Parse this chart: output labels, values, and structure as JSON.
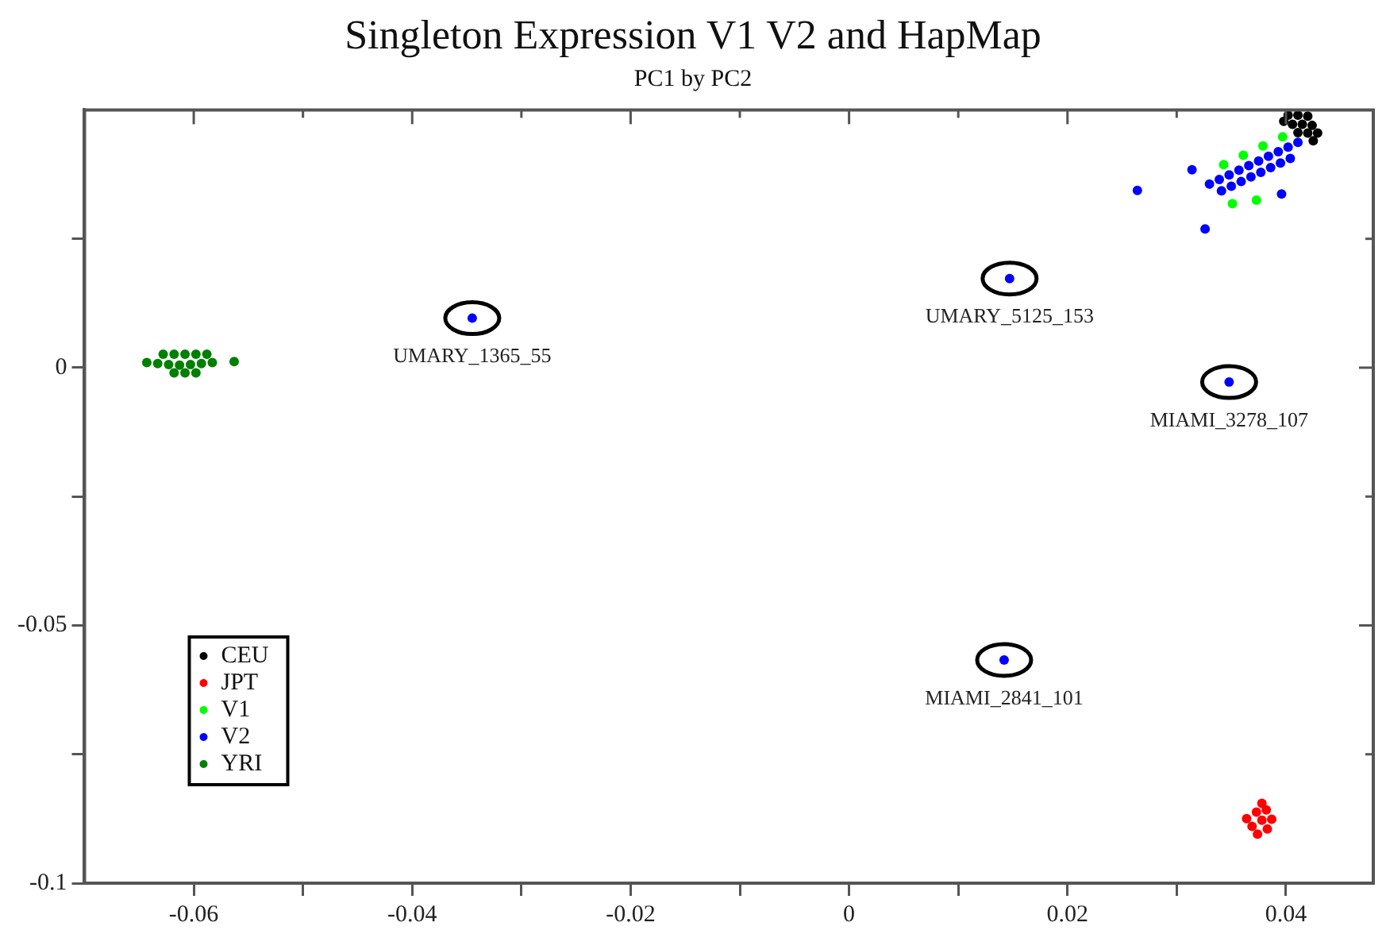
{
  "chart_data": {
    "type": "scatter",
    "title": "Singleton Expression V1 V2 and HapMap",
    "subtitle": "PC1 by PC2",
    "xlim": [
      -0.07,
      0.048
    ],
    "ylim": [
      -0.1,
      0.05
    ],
    "xticks": [
      -0.06,
      {
        "value": -0.05,
        "label": null
      },
      -0.04,
      {
        "value": -0.03,
        "label": null
      },
      -0.02,
      {
        "value": -0.01,
        "label": null
      },
      0,
      {
        "value": 0.01,
        "label": null
      },
      0.02,
      {
        "value": 0.03,
        "label": null
      },
      0.04
    ],
    "yticks": [
      -0.1,
      {
        "value": -0.075,
        "label": null
      },
      -0.05,
      {
        "value": -0.025,
        "label": null
      },
      0,
      {
        "value": 0.025,
        "label": null
      }
    ],
    "grid": false,
    "legend": "bottom left",
    "marker": "circle",
    "series": [
      {
        "name": "CEU",
        "color": "#000000",
        "x": [
          0.0402,
          0.0411,
          0.042,
          0.0398,
          0.0406,
          0.0415,
          0.0424,
          0.0411,
          0.042,
          0.0429,
          0.0425
        ],
        "values": [
          0.049,
          0.049,
          0.0488,
          0.0478,
          0.0472,
          0.0472,
          0.047,
          0.0456,
          0.0455,
          0.0455,
          0.044
        ]
      },
      {
        "name": "JPT",
        "color": "#ff0000",
        "x": [
          0.0364,
          0.0373,
          0.0382,
          0.0369,
          0.0378,
          0.0387,
          0.0374,
          0.0383,
          0.0378
        ],
        "values": [
          -0.0875,
          -0.0862,
          -0.0858,
          -0.089,
          -0.0878,
          -0.0876,
          -0.0905,
          -0.0895,
          -0.0845
        ]
      },
      {
        "name": "V1",
        "color": "#00ff00",
        "x": [
          0.0343,
          0.0361,
          0.0379,
          0.0397,
          0.0373,
          0.0351
        ],
        "values": [
          0.0394,
          0.0412,
          0.043,
          0.0448,
          0.0325,
          0.0318
        ]
      },
      {
        "name": "V2",
        "color": "#0000ff",
        "x": [
          -0.0345,
          0.0147,
          0.0348,
          0.0142,
          0.0264,
          0.0314,
          0.0326,
          0.0396,
          0.033,
          0.0339,
          0.0348,
          0.0357,
          0.0366,
          0.0375,
          0.0384,
          0.0393,
          0.0402,
          0.0411,
          0.0341,
          0.035,
          0.0359,
          0.0368,
          0.0377,
          0.0386,
          0.0395,
          0.0404
        ],
        "values": [
          0.0096,
          0.0173,
          -0.0028,
          -0.0567,
          0.0344,
          0.0384,
          0.0269,
          0.0337,
          0.0356,
          0.0365,
          0.0374,
          0.0383,
          0.0392,
          0.0401,
          0.041,
          0.0419,
          0.0428,
          0.0437,
          0.0343,
          0.0352,
          0.0361,
          0.037,
          0.0379,
          0.0388,
          0.0397,
          0.0406
        ]
      },
      {
        "name": "YRI",
        "color": "#008000",
        "x": [
          -0.0643,
          -0.0633,
          -0.0623,
          -0.0613,
          -0.0603,
          -0.0593,
          -0.0583,
          -0.0628,
          -0.0618,
          -0.0608,
          -0.0598,
          -0.0588,
          -0.0618,
          -0.0608,
          -0.0598,
          -0.0563
        ],
        "values": [
          0.001,
          0.0008,
          0.0006,
          0.0005,
          0.0006,
          0.0008,
          0.001,
          0.0026,
          0.0026,
          0.0026,
          0.0026,
          0.0026,
          -0.001,
          -0.001,
          -0.001,
          0.0012
        ]
      }
    ],
    "annotations": [
      {
        "text": "UMARY_1365_55",
        "x": -0.0345,
        "y": 0.0096
      },
      {
        "text": "UMARY_5125_153",
        "x": 0.0147,
        "y": 0.0173
      },
      {
        "text": "MIAMI_3278_107",
        "x": 0.0348,
        "y": -0.0028
      },
      {
        "text": "MIAMI_2841_101",
        "x": 0.0142,
        "y": -0.0567
      }
    ]
  }
}
